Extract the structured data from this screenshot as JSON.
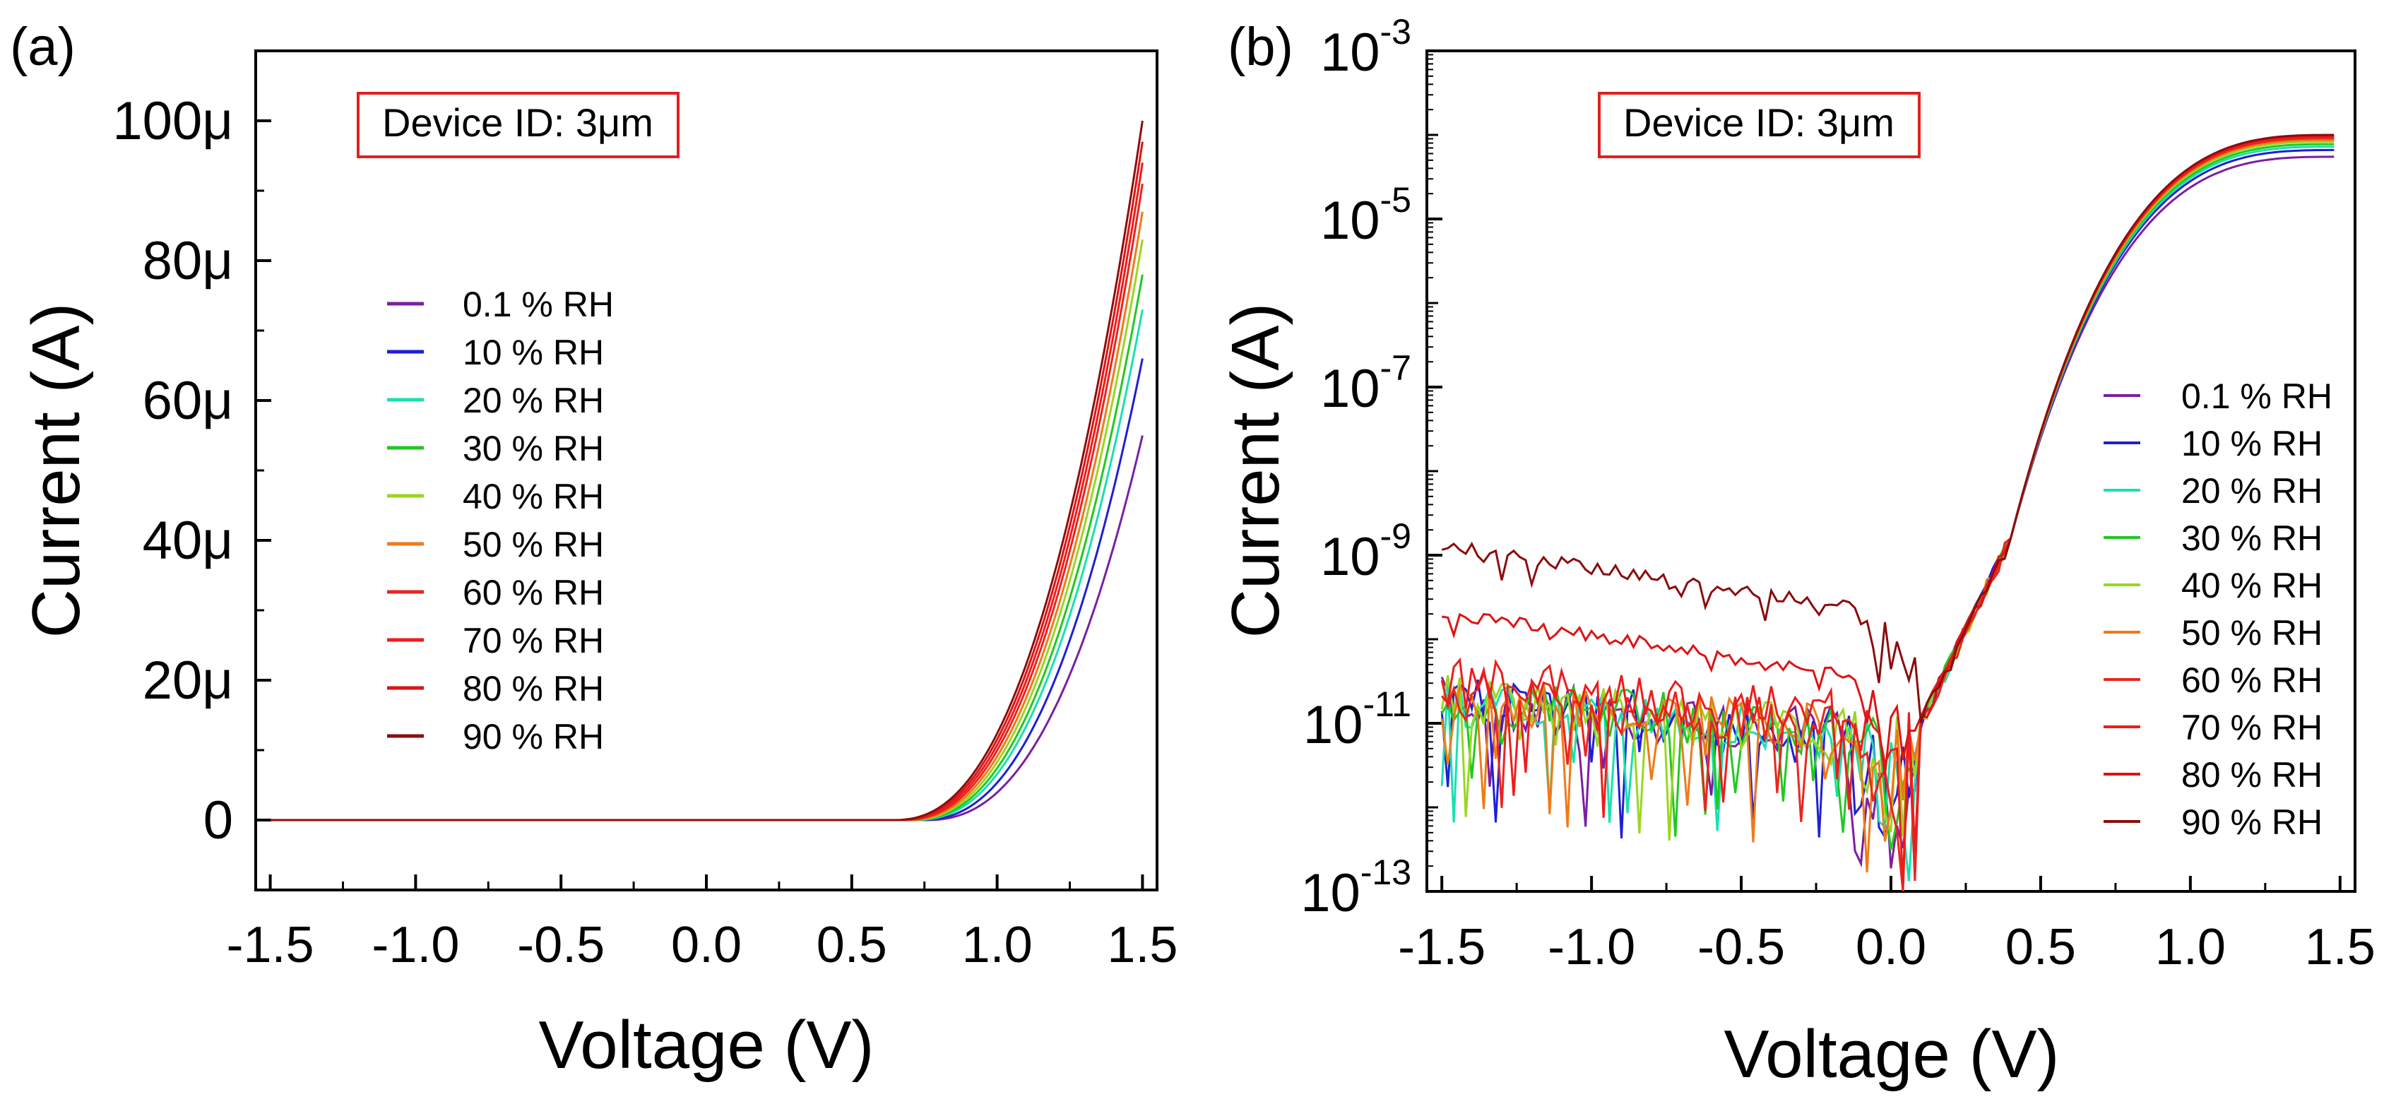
{
  "chart_data": [
    {
      "panel_label": "(a)",
      "type": "line",
      "xlabel": "Voltage (V)",
      "ylabel": "Current (A)",
      "yscale": "linear",
      "xlim": [
        -1.55,
        1.55
      ],
      "ylim": [
        -10,
        110
      ],
      "x_ticks": [
        -1.5,
        -1.0,
        -0.5,
        0.0,
        0.5,
        1.0,
        1.5
      ],
      "x_tick_labels": [
        "-1.5",
        "-1.0",
        "-0.5",
        "0.0",
        "0.5",
        "1.0",
        "1.5"
      ],
      "y_ticks": [
        0,
        20,
        40,
        60,
        80,
        100
      ],
      "y_tick_labels": [
        "0",
        "20μ",
        "40μ",
        "60μ",
        "80μ",
        "100μ"
      ],
      "y_unit": "μA",
      "annotation": "Device ID: 3μm",
      "legend_position": "left-middle",
      "series": [
        {
          "name": "0.1 % RH",
          "color": "#7b1fa2",
          "onset": 0.75,
          "end_value": 55
        },
        {
          "name": "10 % RH",
          "color": "#1f1fd6",
          "onset": 0.73,
          "end_value": 66
        },
        {
          "name": "20 % RH",
          "color": "#19e0b0",
          "onset": 0.71,
          "end_value": 73
        },
        {
          "name": "30 % RH",
          "color": "#22c822",
          "onset": 0.7,
          "end_value": 78
        },
        {
          "name": "40 % RH",
          "color": "#9ad620",
          "onset": 0.69,
          "end_value": 83
        },
        {
          "name": "50 % RH",
          "color": "#f07a18",
          "onset": 0.68,
          "end_value": 87
        },
        {
          "name": "60 % RH",
          "color": "#e8261e",
          "onset": 0.67,
          "end_value": 91
        },
        {
          "name": "70 % RH",
          "color": "#ee1c1c",
          "onset": 0.66,
          "end_value": 94
        },
        {
          "name": "80 % RH",
          "color": "#dc1414",
          "onset": 0.65,
          "end_value": 97
        },
        {
          "name": "90 % RH",
          "color": "#8b0d0d",
          "onset": 0.64,
          "end_value": 100
        }
      ]
    },
    {
      "panel_label": "(b)",
      "type": "line",
      "xlabel": "Voltage (V)",
      "ylabel": "Current (A)",
      "yscale": "log",
      "xlim": [
        -1.55,
        1.55
      ],
      "ylim_exp": [
        -13,
        -3
      ],
      "x_ticks": [
        -1.5,
        -1.0,
        -0.5,
        0.0,
        0.5,
        1.0,
        1.5
      ],
      "x_tick_labels": [
        "-1.5",
        "-1.0",
        "-0.5",
        "0.0",
        "0.5",
        "1.0",
        "1.5"
      ],
      "y_tick_exponents": [
        -13,
        -11,
        -9,
        -7,
        -5,
        -3
      ],
      "y_tick_labels": [
        "10-13",
        "10-11",
        "10-9",
        "10-7",
        "10-5",
        "10-3"
      ],
      "annotation": "Device ID: 3μm",
      "legend_position": "right-middle",
      "series": [
        {
          "name": "0.1 % RH",
          "color": "#7b1fa2",
          "reverse_exp": -10.45,
          "end_exp": -4.26
        },
        {
          "name": "10 % RH",
          "color": "#1f1fd6",
          "reverse_exp": -10.4,
          "end_exp": -4.18
        },
        {
          "name": "20 % RH",
          "color": "#19e0b0",
          "reverse_exp": -10.45,
          "end_exp": -4.14
        },
        {
          "name": "30 % RH",
          "color": "#22c822",
          "reverse_exp": -10.4,
          "end_exp": -4.11
        },
        {
          "name": "40 % RH",
          "color": "#9ad620",
          "reverse_exp": -10.42,
          "end_exp": -4.08
        },
        {
          "name": "50 % RH",
          "color": "#f07a18",
          "reverse_exp": -10.4,
          "end_exp": -4.06
        },
        {
          "name": "60 % RH",
          "color": "#e8261e",
          "reverse_exp": -10.35,
          "end_exp": -4.04
        },
        {
          "name": "70 % RH",
          "color": "#ee1c1c",
          "reverse_exp": -10.2,
          "end_exp": -4.02
        },
        {
          "name": "80 % RH",
          "color": "#dc1414",
          "reverse_exp": -9.6,
          "end_exp": -4.01
        },
        {
          "name": "90 % RH",
          "color": "#8b0d0d",
          "reverse_exp": -8.8,
          "end_exp": -4.0
        }
      ]
    }
  ]
}
